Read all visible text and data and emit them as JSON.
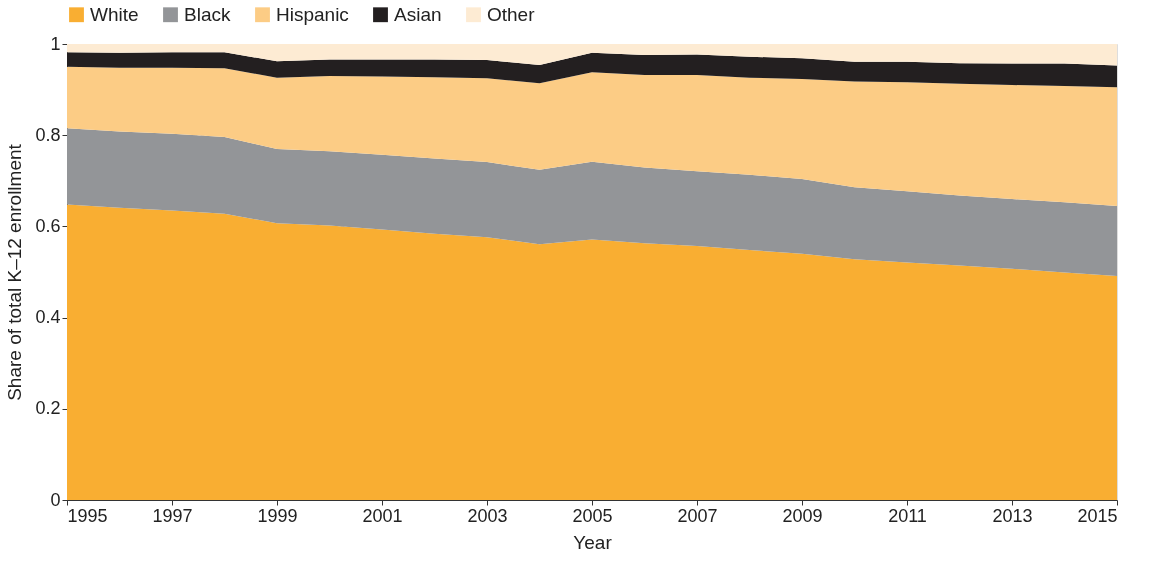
{
  "chart_data": {
    "type": "area",
    "stacked": true,
    "xlabel": "Year",
    "ylabel": "Share of total K–12 enrollment",
    "x": [
      1995,
      1996,
      1997,
      1998,
      1999,
      2000,
      2001,
      2002,
      2003,
      2004,
      2005,
      2006,
      2007,
      2008,
      2009,
      2010,
      2011,
      2012,
      2013,
      2014,
      2015
    ],
    "series": [
      {
        "name": "White",
        "color": "#f9ae32",
        "values": [
          0.648,
          0.641,
          0.635,
          0.628,
          0.607,
          0.602,
          0.593,
          0.584,
          0.576,
          0.561,
          0.571,
          0.563,
          0.557,
          0.548,
          0.54,
          0.528,
          0.521,
          0.514,
          0.507,
          0.499,
          0.491
        ]
      },
      {
        "name": "Black",
        "color": "#939598",
        "values": [
          0.167,
          0.167,
          0.168,
          0.168,
          0.163,
          0.163,
          0.164,
          0.165,
          0.165,
          0.163,
          0.171,
          0.166,
          0.164,
          0.165,
          0.164,
          0.158,
          0.156,
          0.154,
          0.153,
          0.154,
          0.154
        ]
      },
      {
        "name": "Hispanic",
        "color": "#fccc85",
        "values": [
          0.135,
          0.14,
          0.145,
          0.151,
          0.156,
          0.165,
          0.172,
          0.178,
          0.184,
          0.19,
          0.196,
          0.203,
          0.211,
          0.213,
          0.219,
          0.232,
          0.239,
          0.245,
          0.25,
          0.255,
          0.26
        ]
      },
      {
        "name": "Asian",
        "color": "#231f20",
        "values": [
          0.032,
          0.033,
          0.034,
          0.035,
          0.036,
          0.036,
          0.037,
          0.039,
          0.04,
          0.04,
          0.043,
          0.044,
          0.045,
          0.046,
          0.046,
          0.043,
          0.045,
          0.045,
          0.047,
          0.049,
          0.048
        ]
      },
      {
        "name": "Other",
        "color": "#fdebd3",
        "values": [
          0.018,
          0.019,
          0.018,
          0.018,
          0.038,
          0.034,
          0.034,
          0.034,
          0.035,
          0.046,
          0.019,
          0.024,
          0.023,
          0.028,
          0.031,
          0.039,
          0.039,
          0.042,
          0.043,
          0.043,
          0.047
        ]
      }
    ],
    "xlim": [
      1995,
      2015
    ],
    "xticks": [
      1995,
      1997,
      1999,
      2001,
      2003,
      2005,
      2007,
      2009,
      2011,
      2013,
      2015
    ],
    "ylim": [
      0,
      1
    ],
    "yticks": [
      0,
      0.2,
      0.4,
      0.6,
      0.8,
      1
    ],
    "grid": "y",
    "legend": "top"
  }
}
